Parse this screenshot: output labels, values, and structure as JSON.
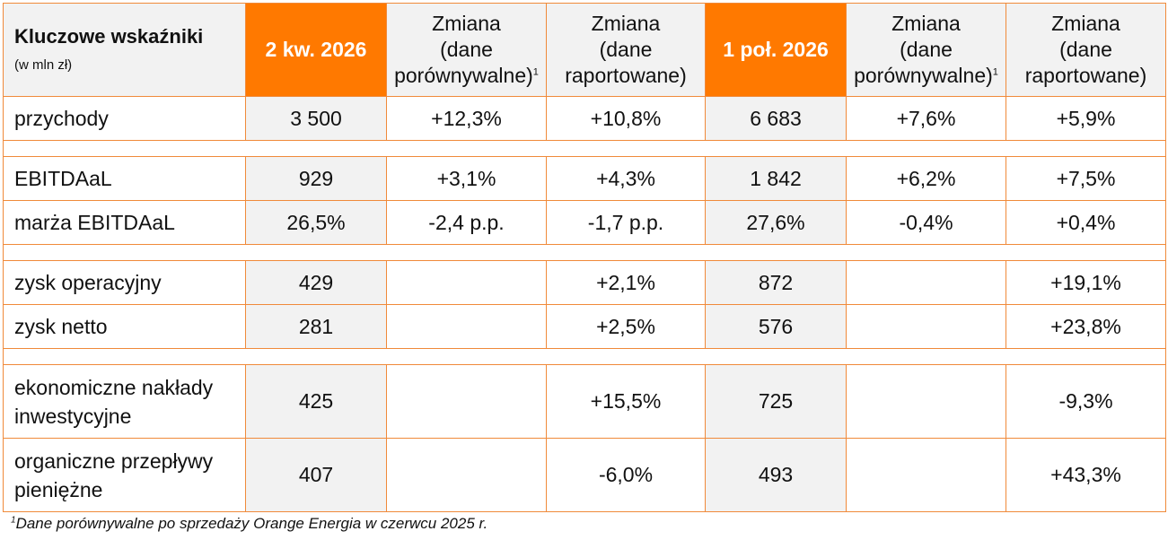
{
  "header": {
    "title": "Kluczowe wskaźniki",
    "unit": "(w mln zł)",
    "col_q": "2 kw. 2026",
    "col_h": "1 poł. 2026",
    "change_word": "Zmiana",
    "change_comparable": "(dane porówny­walne)",
    "change_reported": "(dane raportowane)",
    "footnote_mark": "1"
  },
  "rows": {
    "przychody": {
      "label": "przychody",
      "q": "3 500",
      "q_comp": "+12,3%",
      "q_rep": "+10,8%",
      "h": "6 683",
      "h_comp": "+7,6%",
      "h_rep": "+5,9%"
    },
    "ebitdaal": {
      "label": "EBITDAaL",
      "q": "929",
      "q_comp": "+3,1%",
      "q_rep": "+4,3%",
      "h": "1 842",
      "h_comp": "+6,2%",
      "h_rep": "+7,5%"
    },
    "marza": {
      "label": "marża EBITDAaL",
      "q": "26,5%",
      "q_comp": "-2,4 p.p.",
      "q_rep": "-1,7 p.p.",
      "h": "27,6%",
      "h_comp": "-0,4%",
      "h_rep": "+0,4%"
    },
    "zysk_op": {
      "label": "zysk operacyjny",
      "q": "429",
      "q_comp": "",
      "q_rep": "+2,1%",
      "h": "872",
      "h_comp": "",
      "h_rep": "+19,1%"
    },
    "zysk_netto": {
      "label": "zysk netto",
      "q": "281",
      "q_comp": "",
      "q_rep": "+2,5%",
      "h": "576",
      "h_comp": "",
      "h_rep": "+23,8%"
    },
    "naklady": {
      "label_1": "ekonomiczne nakłady",
      "label_2": "inwestycyjne",
      "q": "425",
      "q_comp": "",
      "q_rep": "+15,5%",
      "h": "725",
      "h_comp": "",
      "h_rep": "-9,3%"
    },
    "przeplywy": {
      "label_1": "organiczne przepływy",
      "label_2": "pieniężne",
      "q": "407",
      "q_comp": "",
      "q_rep": "-6,0%",
      "h": "493",
      "h_comp": "",
      "h_rep": "+43,3%"
    }
  },
  "footnote": {
    "mark": "1",
    "text": "Dane porównywalne po sprzedaży Orange Energia w czerwcu 2025  r."
  },
  "colors": {
    "accent": "#ff7900",
    "border": "#f08a3a",
    "grey": "#f2f2f2"
  }
}
